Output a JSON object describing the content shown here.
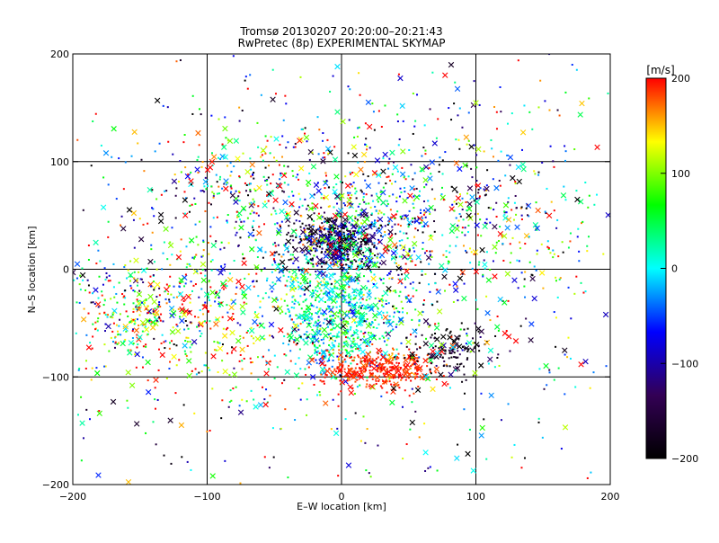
{
  "chart_data": [
    {
      "type": "scatter",
      "title": "Tromsø 20130207 20:20:00–20:21:43",
      "subtitle": "RwPretec (8p) EXPERIMENTAL SKYMAP",
      "xlabel": "E–W location [km]",
      "ylabel": "N–S location [km]",
      "xlim": [
        -200,
        200
      ],
      "ylim": [
        -200,
        200
      ],
      "xticks": [
        -200,
        -100,
        0,
        100,
        200
      ],
      "yticks": [
        -200,
        -100,
        0,
        100,
        200
      ],
      "x_tick_labels": [
        "−200",
        "−100",
        "0",
        "100",
        "200"
      ],
      "y_tick_labels": [
        "−200",
        "−100",
        "0",
        "100",
        "200"
      ],
      "grid": true,
      "marker_small": "dot",
      "marker_large": "x",
      "color_by": "velocity [m/s]",
      "point_groups": [
        {
          "x": -150,
          "y": -30,
          "spread_x": 45,
          "spread_y": 30,
          "v": 60,
          "spread_v": 120,
          "n": 350
        },
        {
          "x": -110,
          "y": -50,
          "spread_x": 50,
          "spread_y": 40,
          "v": 140,
          "spread_v": 90,
          "n": 250
        },
        {
          "x": 0,
          "y": -40,
          "spread_x": 22,
          "spread_y": 30,
          "v": 15,
          "spread_v": 50,
          "n": 700
        },
        {
          "x": -5,
          "y": 25,
          "spread_x": 18,
          "spread_y": 12,
          "v": -180,
          "spread_v": 50,
          "n": 300
        },
        {
          "x": 0,
          "y": 25,
          "spread_x": 12,
          "spread_y": 10,
          "v": -110,
          "spread_v": 30,
          "n": 120
        },
        {
          "x": 10,
          "y": 35,
          "spread_x": 30,
          "spread_y": 30,
          "v": 10,
          "spread_v": 90,
          "n": 300
        },
        {
          "x": 30,
          "y": -92,
          "spread_x": 25,
          "spread_y": 9,
          "v": 190,
          "spread_v": 15,
          "n": 350
        },
        {
          "x": 80,
          "y": -75,
          "spread_x": 15,
          "spread_y": 12,
          "v": -190,
          "spread_v": 40,
          "n": 120
        },
        {
          "x": 40,
          "y": 60,
          "spread_x": 60,
          "spread_y": 45,
          "v": 30,
          "spread_v": 160,
          "n": 350
        },
        {
          "x": 0,
          "y": 0,
          "spread_x": 120,
          "spread_y": 110,
          "v": 0,
          "spread_v": 140,
          "n": 900
        },
        {
          "x": -70,
          "y": 75,
          "spread_x": 35,
          "spread_y": 25,
          "v": 30,
          "spread_v": 140,
          "n": 200
        },
        {
          "x": 120,
          "y": 20,
          "spread_x": 45,
          "spread_y": 60,
          "v": 20,
          "spread_v": 140,
          "n": 220
        }
      ],
      "colorbar": {
        "label": "[m/s]",
        "range": [
          -200,
          200
        ],
        "ticks": [
          200,
          100,
          0,
          -100,
          -200
        ],
        "tick_labels": [
          "200",
          "100",
          "0",
          "−100",
          "−200"
        ],
        "colormap": [
          "#000000",
          "#330055",
          "#0000ff",
          "#00ffff",
          "#00ff00",
          "#ffff00",
          "#ff0000"
        ]
      }
    }
  ]
}
